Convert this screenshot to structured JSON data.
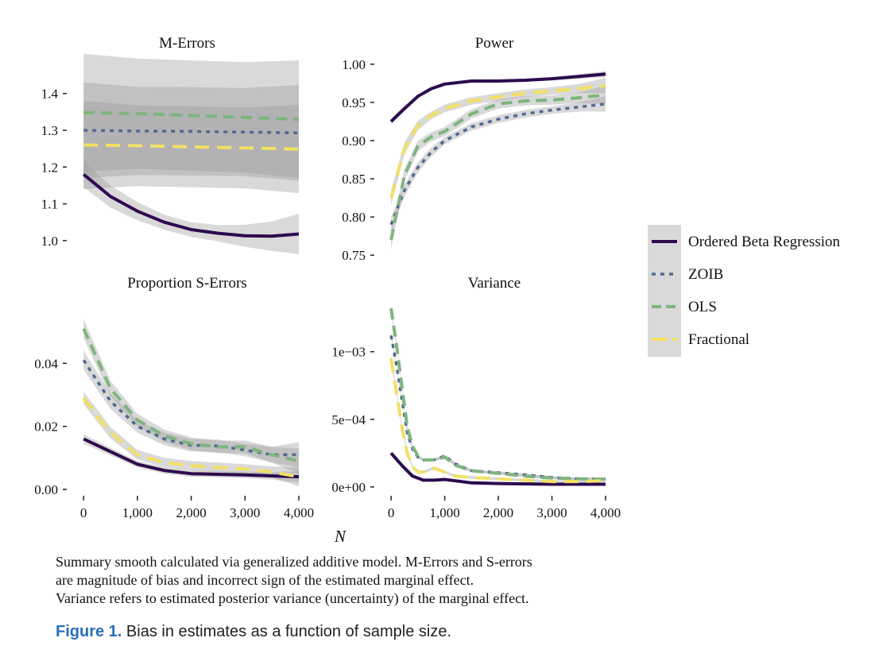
{
  "chart_data": {
    "type": "line",
    "x_axis_label": "N",
    "x_ticks": [
      0,
      1000,
      2000,
      3000,
      4000
    ],
    "x_tick_labels": [
      "0",
      "1,000",
      "2,000",
      "3,000",
      "4,000"
    ],
    "xlim": [
      -150,
      4000
    ],
    "legend": {
      "placement": "right",
      "entries": [
        {
          "name": "Ordered Beta Regression",
          "color": "#2d0a4e",
          "dash": "solid"
        },
        {
          "name": "ZOIB",
          "color": "#4f6a8f",
          "dash": "dotted"
        },
        {
          "name": "OLS",
          "color": "#7fb47f",
          "dash": "dashed"
        },
        {
          "name": "Fractional",
          "color": "#f2e065",
          "dash": "longdash"
        }
      ]
    },
    "panels": [
      {
        "id": "m-errors",
        "title": "M-Errors",
        "ylim": [
          0.95,
          1.49
        ],
        "y_ticks": [
          1.0,
          1.1,
          1.2,
          1.3,
          1.4
        ],
        "y_tick_labels": [
          "1.0",
          "1.1",
          "1.2",
          "1.3",
          "1.4"
        ],
        "series": [
          {
            "name": "Ordered Beta Regression",
            "x": [
              0,
              500,
              1000,
              1500,
              2000,
              2500,
              3000,
              3500,
              4000
            ],
            "y": [
              1.18,
              1.12,
              1.08,
              1.05,
              1.03,
              1.02,
              1.013,
              1.012,
              1.018
            ],
            "band": [
              0.035,
              0.03,
              0.025,
              0.02,
              0.02,
              0.022,
              0.03,
              0.04,
              0.055
            ]
          },
          {
            "name": "ZOIB",
            "x": [
              0,
              1000,
              2000,
              3000,
              4000
            ],
            "y": [
              1.3,
              1.298,
              1.297,
              1.295,
              1.293
            ],
            "band": [
              0.13,
              0.12,
              0.12,
              0.12,
              0.13
            ]
          },
          {
            "name": "OLS",
            "x": [
              0,
              1000,
              2000,
              3000,
              4000
            ],
            "y": [
              1.348,
              1.345,
              1.34,
              1.335,
              1.33
            ],
            "band": [
              0.16,
              0.15,
              0.15,
              0.15,
              0.16
            ]
          },
          {
            "name": "Fractional",
            "x": [
              0,
              1000,
              2000,
              3000,
              4000
            ],
            "y": [
              1.26,
              1.258,
              1.255,
              1.252,
              1.249
            ],
            "band": [
              0.12,
              0.11,
              0.11,
              0.11,
              0.12
            ]
          }
        ]
      },
      {
        "id": "power",
        "title": "Power",
        "ylim": [
          0.745,
          1.005
        ],
        "y_ticks": [
          0.75,
          0.8,
          0.85,
          0.9,
          0.95,
          1.0
        ],
        "y_tick_labels": [
          "0.75",
          "0.80",
          "0.85",
          "0.90",
          "0.95",
          "1.00"
        ],
        "series": [
          {
            "name": "Ordered Beta Regression",
            "x": [
              0,
              250,
              500,
              750,
              1000,
              1500,
              2000,
              2500,
              3000,
              3500,
              4000
            ],
            "y": [
              0.925,
              0.942,
              0.958,
              0.968,
              0.974,
              0.978,
              0.978,
              0.979,
              0.981,
              0.984,
              0.987
            ],
            "band": [
              0.004,
              0.003,
              0.002,
              0.002,
              0.002,
              0.002,
              0.002,
              0.002,
              0.002,
              0.003,
              0.004
            ]
          },
          {
            "name": "ZOIB",
            "x": [
              0,
              250,
              500,
              750,
              1000,
              1500,
              2000,
              2500,
              3000,
              3500,
              4000
            ],
            "y": [
              0.79,
              0.835,
              0.865,
              0.885,
              0.9,
              0.918,
              0.928,
              0.935,
              0.94,
              0.944,
              0.948
            ],
            "band": [
              0.01,
              0.008,
              0.007,
              0.006,
              0.005,
              0.005,
              0.005,
              0.005,
              0.005,
              0.006,
              0.01
            ]
          },
          {
            "name": "OLS",
            "x": [
              0,
              250,
              500,
              750,
              1000,
              1500,
              2000,
              2500,
              3000,
              3500,
              4000
            ],
            "y": [
              0.77,
              0.855,
              0.893,
              0.905,
              0.912,
              0.935,
              0.948,
              0.952,
              0.953,
              0.956,
              0.96
            ],
            "band": [
              0.012,
              0.008,
              0.007,
              0.006,
              0.006,
              0.006,
              0.006,
              0.006,
              0.006,
              0.007,
              0.012
            ]
          },
          {
            "name": "Fractional",
            "x": [
              0,
              250,
              500,
              750,
              1000,
              1500,
              2000,
              2500,
              3000,
              3500,
              4000
            ],
            "y": [
              0.825,
              0.89,
              0.92,
              0.933,
              0.942,
              0.952,
              0.957,
              0.962,
              0.965,
              0.968,
              0.972
            ],
            "band": [
              0.01,
              0.008,
              0.006,
              0.005,
              0.005,
              0.005,
              0.005,
              0.005,
              0.005,
              0.006,
              0.01
            ]
          }
        ]
      },
      {
        "id": "proportion-s-errors",
        "title": "Proportion S-Errors",
        "ylim": [
          -0.0005,
          0.06
        ],
        "y_ticks": [
          0.0,
          0.02,
          0.04
        ],
        "y_tick_labels": [
          "0.00",
          "0.02",
          "0.04"
        ],
        "series": [
          {
            "name": "Ordered Beta Regression",
            "x": [
              0,
              500,
              1000,
              1500,
              2000,
              2500,
              3000,
              3500,
              4000
            ],
            "y": [
              0.016,
              0.012,
              0.008,
              0.006,
              0.005,
              0.0048,
              0.0046,
              0.0043,
              0.004
            ],
            "band": [
              0.0015,
              0.0012,
              0.001,
              0.001,
              0.001,
              0.001,
              0.001,
              0.0012,
              0.0018
            ]
          },
          {
            "name": "ZOIB",
            "x": [
              0,
              500,
              1000,
              1500,
              2000,
              2500,
              3000,
              3500,
              4000
            ],
            "y": [
              0.041,
              0.028,
              0.02,
              0.016,
              0.014,
              0.0138,
              0.0125,
              0.011,
              0.011
            ],
            "band": [
              0.003,
              0.0025,
              0.002,
              0.002,
              0.002,
              0.002,
              0.002,
              0.0025,
              0.004
            ]
          },
          {
            "name": "OLS",
            "x": [
              0,
              500,
              1000,
              1500,
              2000,
              2500,
              3000,
              3500,
              4000
            ],
            "y": [
              0.051,
              0.032,
              0.022,
              0.017,
              0.0145,
              0.0135,
              0.0135,
              0.011,
              0.009
            ],
            "band": [
              0.003,
              0.0025,
              0.002,
              0.002,
              0.002,
              0.002,
              0.002,
              0.0025,
              0.004
            ]
          },
          {
            "name": "Fractional",
            "x": [
              0,
              500,
              1000,
              1500,
              2000,
              2500,
              3000,
              3500,
              4000
            ],
            "y": [
              0.029,
              0.018,
              0.011,
              0.0085,
              0.0075,
              0.007,
              0.0065,
              0.0055,
              0.004
            ],
            "band": [
              0.002,
              0.0018,
              0.0015,
              0.0015,
              0.0015,
              0.0015,
              0.0015,
              0.0018,
              0.003
            ]
          }
        ]
      },
      {
        "id": "variance",
        "title": "Variance",
        "ylim": [
          -3e-05,
          0.00138
        ],
        "y_ticks": [
          0.0,
          0.0005,
          0.001
        ],
        "y_tick_labels": [
          "0e+00",
          "5e−04",
          "1e−03"
        ],
        "series": [
          {
            "name": "Ordered Beta Regression",
            "x": [
              0,
              200,
              400,
              600,
              800,
              1000,
              1200,
              1500,
              2000,
              3000,
              4000
            ],
            "y": [
              0.00025,
              0.00016,
              8e-05,
              5e-05,
              5e-05,
              5.5e-05,
              4.5e-05,
              3e-05,
              2.5e-05,
              2e-05,
              2e-05
            ],
            "band": [
              1e-05,
              1e-05,
              1e-05,
              1e-05,
              1e-05,
              1e-05,
              1e-05,
              1e-05,
              1e-05,
              1e-05,
              1e-05
            ]
          },
          {
            "name": "ZOIB",
            "x": [
              0,
              100,
              200,
              300,
              400,
              500,
              600,
              800,
              1000,
              1200,
              1500,
              2000,
              2500,
              3000,
              3500,
              4000
            ],
            "y": [
              0.00112,
              0.0009,
              0.00065,
              0.0004,
              0.00028,
              0.00022,
              0.0002,
              0.0002,
              0.00023,
              0.00017,
              0.00012,
              0.000105,
              9e-05,
              7e-05,
              6e-05,
              6e-05
            ],
            "band": [
              3e-05,
              2e-05,
              2e-05,
              2e-05,
              1e-05,
              1e-05,
              1e-05,
              1e-05,
              1e-05,
              1e-05,
              1e-05,
              1e-05,
              1e-05,
              1e-05,
              1e-05,
              1e-05
            ]
          },
          {
            "name": "OLS",
            "x": [
              0,
              100,
              200,
              300,
              400,
              500,
              600,
              800,
              1000,
              1200,
              1500,
              2000,
              2500,
              3000,
              3500,
              4000
            ],
            "y": [
              0.00132,
              0.00105,
              0.00075,
              0.00045,
              0.0003,
              0.00023,
              0.0002,
              0.0002,
              0.00022,
              0.00016,
              0.00012,
              0.0001,
              8e-05,
              6.5e-05,
              6e-05,
              5.8e-05
            ],
            "band": [
              3e-05,
              2e-05,
              2e-05,
              2e-05,
              1e-05,
              1e-05,
              1e-05,
              1e-05,
              1e-05,
              1e-05,
              1e-05,
              1e-05,
              1e-05,
              1e-05,
              1e-05,
              1e-05
            ]
          },
          {
            "name": "Fractional",
            "x": [
              0,
              100,
              200,
              300,
              400,
              500,
              600,
              800,
              1000,
              1200,
              1500,
              2000,
              2500,
              3000,
              3500,
              4000
            ],
            "y": [
              0.00095,
              0.0007,
              0.00045,
              0.00025,
              0.00015,
              0.00011,
              0.00011,
              0.00014,
              0.00011,
              8e-05,
              7e-05,
              6e-05,
              5e-05,
              4e-05,
              4e-05,
              4.5e-05
            ],
            "band": [
              3e-05,
              2e-05,
              2e-05,
              2e-05,
              1e-05,
              1e-05,
              1e-05,
              1e-05,
              1e-05,
              1e-05,
              1e-05,
              1e-05,
              1e-05,
              1e-05,
              1e-05,
              1e-05
            ]
          }
        ]
      }
    ]
  },
  "caption": {
    "note_lines": [
      "Summary smooth calculated via generalized additive model. M-Errors and S-errors",
      "are magnitude of bias and incorrect sign of the estimated marginal effect.",
      "Variance refers to estimated posterior variance (uncertainty) of the marginal effect."
    ],
    "figure_label": "Figure 1.",
    "figure_text": " Bias in estimates as a function of sample size."
  }
}
